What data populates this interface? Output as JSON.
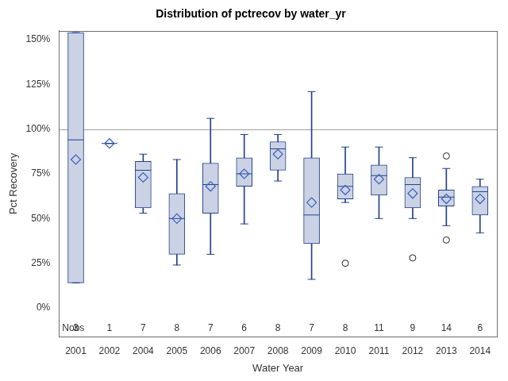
{
  "chart_data": {
    "type": "boxplot",
    "title": "Distribution of pctrecov by water_yr",
    "x_label": "Water Year",
    "y_label": "Pct Recovery",
    "categories": [
      "2001",
      "2002",
      "2004",
      "2005",
      "2006",
      "2007",
      "2008",
      "2009",
      "2010",
      "2011",
      "2012",
      "2013",
      "2014"
    ],
    "q1": [
      14,
      92,
      56,
      30,
      53,
      68,
      77,
      36,
      61,
      63,
      56,
      57,
      52
    ],
    "median": [
      94,
      92,
      77,
      50,
      69,
      75,
      89,
      52,
      68,
      74,
      69,
      62,
      65
    ],
    "q3": [
      154,
      92,
      82,
      64,
      81,
      84,
      93,
      84,
      75,
      80,
      73,
      66,
      68
    ],
    "whisker_low": [
      14,
      92,
      53,
      24,
      30,
      47,
      71,
      16,
      59,
      50,
      50,
      46,
      42
    ],
    "whisker_high": [
      154,
      92,
      86,
      83,
      106,
      97,
      97,
      121,
      90,
      90,
      84,
      78,
      72
    ],
    "mean": [
      83,
      92,
      73,
      50,
      68,
      75,
      86,
      59,
      66,
      72,
      64,
      61,
      61
    ],
    "outliers": [
      [],
      [],
      [],
      [],
      [],
      [],
      [],
      [],
      [
        25
      ],
      [],
      [
        28
      ],
      [
        38,
        85
      ],
      []
    ],
    "nobs_label": "Nobs",
    "nobs": [
      3,
      1,
      7,
      8,
      7,
      6,
      8,
      7,
      8,
      11,
      9,
      14,
      6
    ],
    "reference_line": 100,
    "ylim": [
      -16,
      155
    ],
    "yticks": [
      {
        "value": 0,
        "label": "0%"
      },
      {
        "value": 25,
        "label": "25%"
      },
      {
        "value": 50,
        "label": "50%"
      },
      {
        "value": 75,
        "label": "75%"
      },
      {
        "value": 100,
        "label": "100%"
      },
      {
        "value": 125,
        "label": "125%"
      },
      {
        "value": 150,
        "label": "150%"
      }
    ],
    "color": "#cad2e4",
    "grid": false
  }
}
